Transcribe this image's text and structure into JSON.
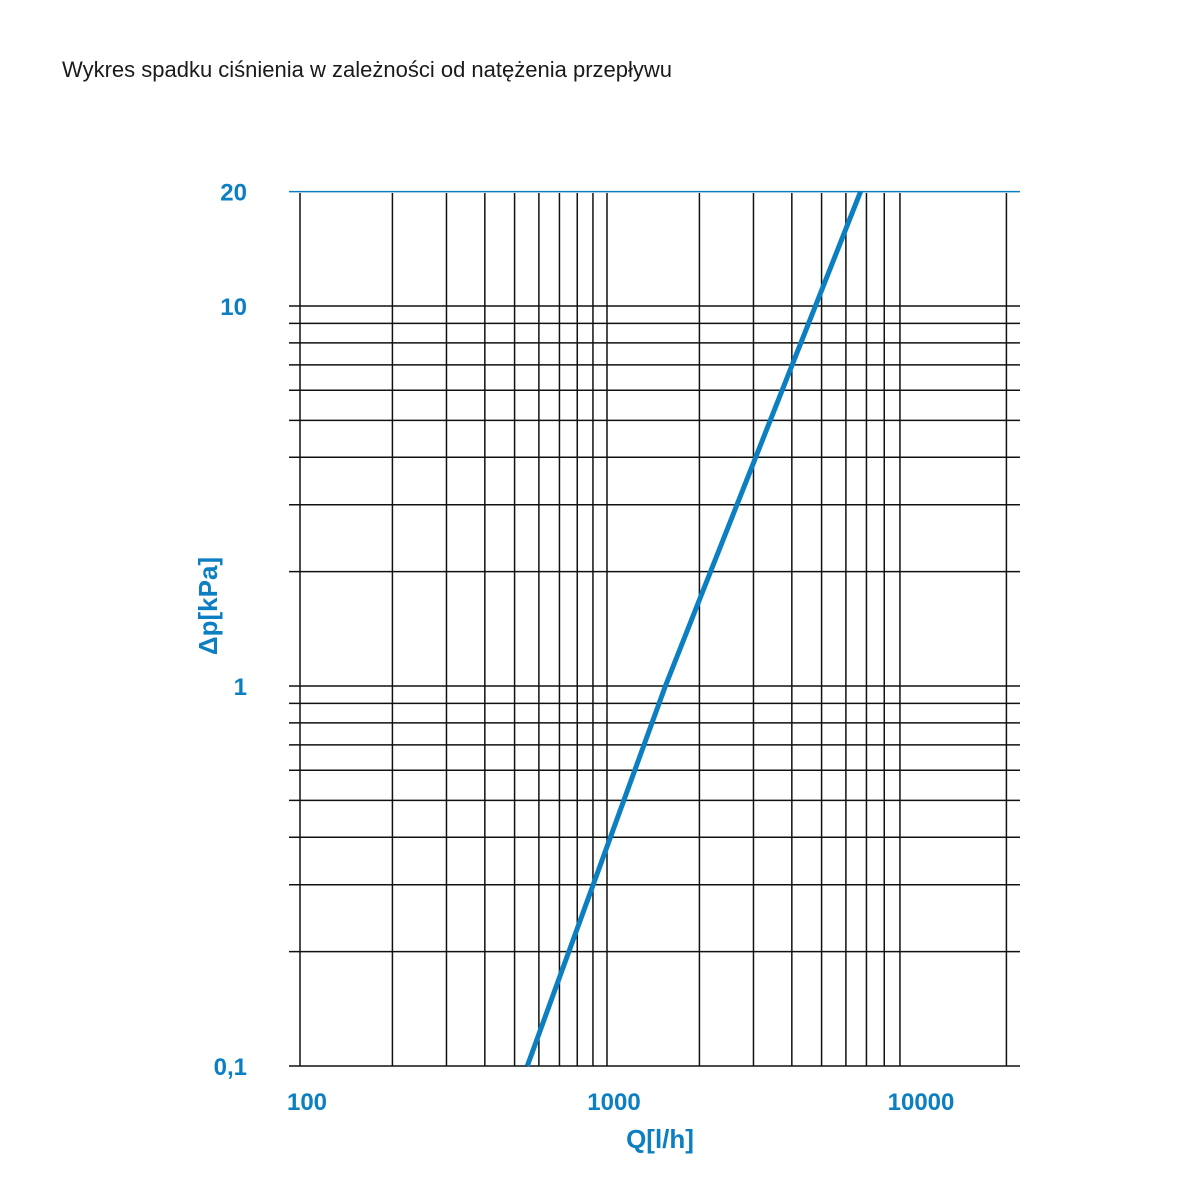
{
  "title": "Wykres spadku ciśnienia w zależności od natężenia przepływu",
  "colors": {
    "accent": "#0b7fc1",
    "grid": "#111111",
    "text": "#1a1a1a"
  },
  "chart_data": {
    "type": "line",
    "title": "Wykres spadku ciśnienia w zależności od natężenia przepływu",
    "xlabel": "Q[l/h]",
    "ylabel": "Δp[kPa]",
    "xscale": "log",
    "yscale": "log",
    "xlim": [
      100,
      20000
    ],
    "ylim": [
      0.1,
      20
    ],
    "x_tick_labels": [
      {
        "value": 100,
        "label": "100"
      },
      {
        "value": 1000,
        "label": "1000"
      },
      {
        "value": 10000,
        "label": "10000"
      }
    ],
    "y_tick_labels": [
      {
        "value": 0.1,
        "label": "0,1"
      },
      {
        "value": 1,
        "label": "1"
      },
      {
        "value": 10,
        "label": "10"
      },
      {
        "value": 20,
        "label": "20"
      }
    ],
    "x_gridlines": [
      100,
      200,
      300,
      400,
      500,
      600,
      700,
      800,
      900,
      1000,
      2000,
      3000,
      4000,
      5000,
      6000,
      7000,
      8000,
      9000,
      20000
    ],
    "y_gridlines": [
      0.1,
      0.2,
      0.3,
      0.4,
      0.5,
      0.6,
      0.7,
      0.8,
      0.9,
      1,
      2,
      3,
      4,
      5,
      6,
      7,
      8,
      9,
      10,
      20
    ],
    "grid": true,
    "series": [
      {
        "x": [
          550,
          1550,
          6700
        ],
        "y": [
          0.1,
          1,
          20
        ]
      }
    ]
  }
}
